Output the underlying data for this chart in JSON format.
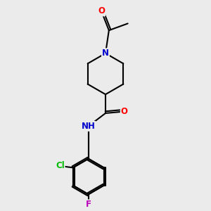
{
  "background_color": "#ebebeb",
  "atom_colors": {
    "O": "#ff0000",
    "N": "#0000cc",
    "Cl": "#00bb00",
    "F": "#bb00bb",
    "C": "#000000",
    "H": "#666666"
  },
  "bond_color": "#000000",
  "bond_width": 1.5,
  "font_size": 8.5
}
